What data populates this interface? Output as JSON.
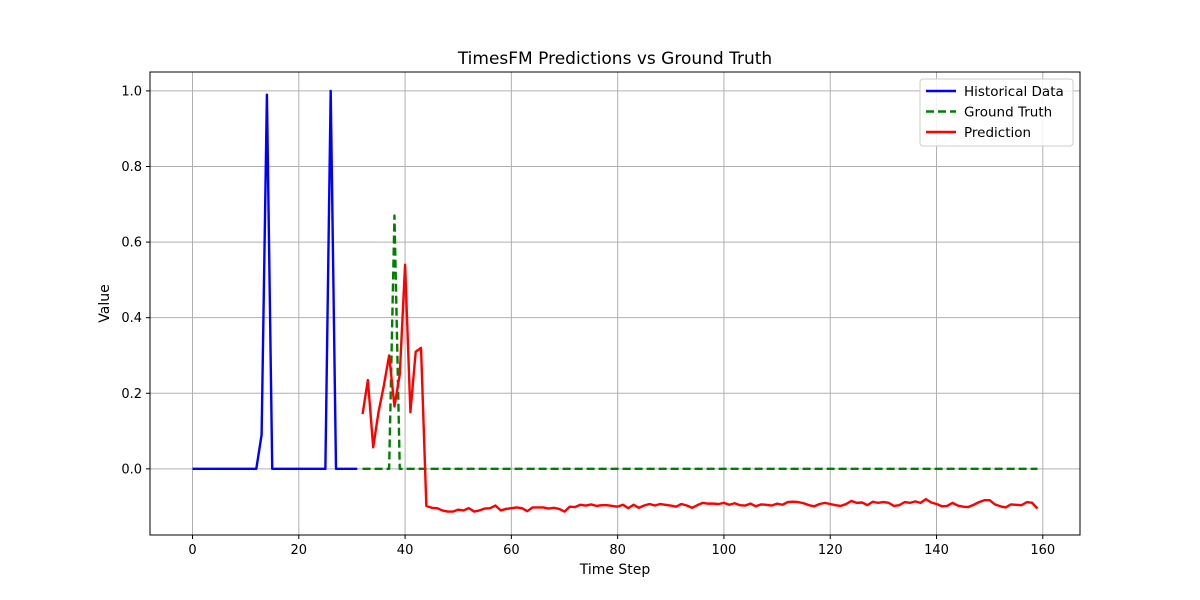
{
  "chart_data": {
    "type": "line",
    "title": "TimesFM Predictions vs Ground Truth",
    "xlabel": "Time Step",
    "ylabel": "Value",
    "xlim": [
      -8,
      167
    ],
    "ylim": [
      -0.175,
      1.05
    ],
    "xticks": [
      0,
      20,
      40,
      60,
      80,
      100,
      120,
      140,
      160
    ],
    "yticks": [
      0.0,
      0.2,
      0.4,
      0.6,
      0.8,
      1.0
    ],
    "xtick_labels": [
      "0",
      "20",
      "40",
      "60",
      "80",
      "100",
      "120",
      "140",
      "160"
    ],
    "ytick_labels": [
      "0.0",
      "0.2",
      "0.4",
      "0.6",
      "0.8",
      "1.0"
    ],
    "grid": true,
    "legend_position": "top-right",
    "series": [
      {
        "name": "Historical Data",
        "color": "#0000ff",
        "style": "solid",
        "x": [
          0,
          1,
          2,
          3,
          4,
          5,
          6,
          7,
          8,
          9,
          10,
          11,
          12,
          13,
          14,
          15,
          16,
          17,
          18,
          19,
          20,
          21,
          22,
          23,
          24,
          25,
          26,
          27,
          28,
          29,
          30,
          31
        ],
        "y": [
          0,
          0,
          0,
          0,
          0,
          0,
          0,
          0,
          0,
          0,
          0,
          0,
          0,
          0.09,
          0.99,
          0,
          0,
          0,
          0,
          0,
          0,
          0,
          0,
          0,
          0,
          0,
          1.0,
          0,
          0,
          0,
          0,
          0
        ]
      },
      {
        "name": "Ground Truth",
        "color": "#008000",
        "style": "dashed",
        "x": [
          32,
          33,
          34,
          35,
          36,
          37,
          38,
          39,
          40,
          41,
          42,
          43,
          44,
          45,
          50,
          60,
          70,
          80,
          90,
          100,
          110,
          120,
          130,
          140,
          150,
          159
        ],
        "y": [
          0,
          0,
          0,
          0,
          0,
          0,
          0.67,
          0,
          0,
          0,
          0,
          0,
          0,
          0,
          0,
          0,
          0,
          0,
          0,
          0,
          0,
          0,
          0,
          0,
          0,
          0
        ]
      },
      {
        "name": "Prediction",
        "color": "#ff0000",
        "style": "solid",
        "x": [
          32,
          33,
          34,
          35,
          36,
          37,
          38,
          39,
          40,
          41,
          42,
          43,
          44,
          45,
          46,
          47,
          48,
          49,
          50,
          51,
          52,
          53,
          54,
          55,
          56,
          57,
          58,
          59,
          60,
          61,
          62,
          63,
          64,
          65,
          66,
          67,
          68,
          69,
          70,
          71,
          72,
          73,
          74,
          75,
          76,
          77,
          78,
          79,
          80,
          81,
          82,
          83,
          84,
          85,
          86,
          87,
          88,
          89,
          90,
          91,
          92,
          93,
          94,
          95,
          96,
          97,
          98,
          99,
          100,
          101,
          102,
          103,
          104,
          105,
          106,
          107,
          108,
          109,
          110,
          111,
          112,
          113,
          114,
          115,
          116,
          117,
          118,
          119,
          120,
          121,
          122,
          123,
          124,
          125,
          126,
          127,
          128,
          129,
          130,
          131,
          132,
          133,
          134,
          135,
          136,
          137,
          138,
          139,
          140,
          141,
          142,
          143,
          144,
          145,
          146,
          147,
          148,
          149,
          150,
          151,
          152,
          153,
          154,
          155,
          156,
          157,
          158,
          159
        ],
        "y": [
          0.145,
          0.235,
          0.057,
          0.15,
          0.22,
          0.3,
          0.165,
          0.25,
          0.54,
          0.15,
          0.31,
          0.32,
          -0.098,
          -0.103,
          -0.104,
          -0.11,
          -0.113,
          -0.113,
          -0.108,
          -0.11,
          -0.104,
          -0.113,
          -0.11,
          -0.105,
          -0.104,
          -0.097,
          -0.11,
          -0.106,
          -0.104,
          -0.102,
          -0.104,
          -0.112,
          -0.102,
          -0.102,
          -0.102,
          -0.105,
          -0.103,
          -0.106,
          -0.113,
          -0.1,
          -0.101,
          -0.095,
          -0.097,
          -0.094,
          -0.098,
          -0.096,
          -0.096,
          -0.098,
          -0.1,
          -0.095,
          -0.104,
          -0.095,
          -0.103,
          -0.097,
          -0.093,
          -0.097,
          -0.093,
          -0.095,
          -0.097,
          -0.1,
          -0.093,
          -0.097,
          -0.103,
          -0.096,
          -0.09,
          -0.092,
          -0.092,
          -0.093,
          -0.09,
          -0.095,
          -0.091,
          -0.096,
          -0.097,
          -0.092,
          -0.099,
          -0.094,
          -0.095,
          -0.097,
          -0.092,
          -0.095,
          -0.088,
          -0.087,
          -0.088,
          -0.091,
          -0.096,
          -0.099,
          -0.093,
          -0.09,
          -0.093,
          -0.096,
          -0.098,
          -0.093,
          -0.085,
          -0.09,
          -0.089,
          -0.096,
          -0.087,
          -0.09,
          -0.088,
          -0.09,
          -0.098,
          -0.096,
          -0.088,
          -0.09,
          -0.086,
          -0.09,
          -0.08,
          -0.089,
          -0.093,
          -0.099,
          -0.098,
          -0.09,
          -0.097,
          -0.1,
          -0.101,
          -0.095,
          -0.088,
          -0.083,
          -0.083,
          -0.094,
          -0.099,
          -0.102,
          -0.094,
          -0.095,
          -0.096,
          -0.088,
          -0.09,
          -0.105
        ]
      }
    ]
  }
}
